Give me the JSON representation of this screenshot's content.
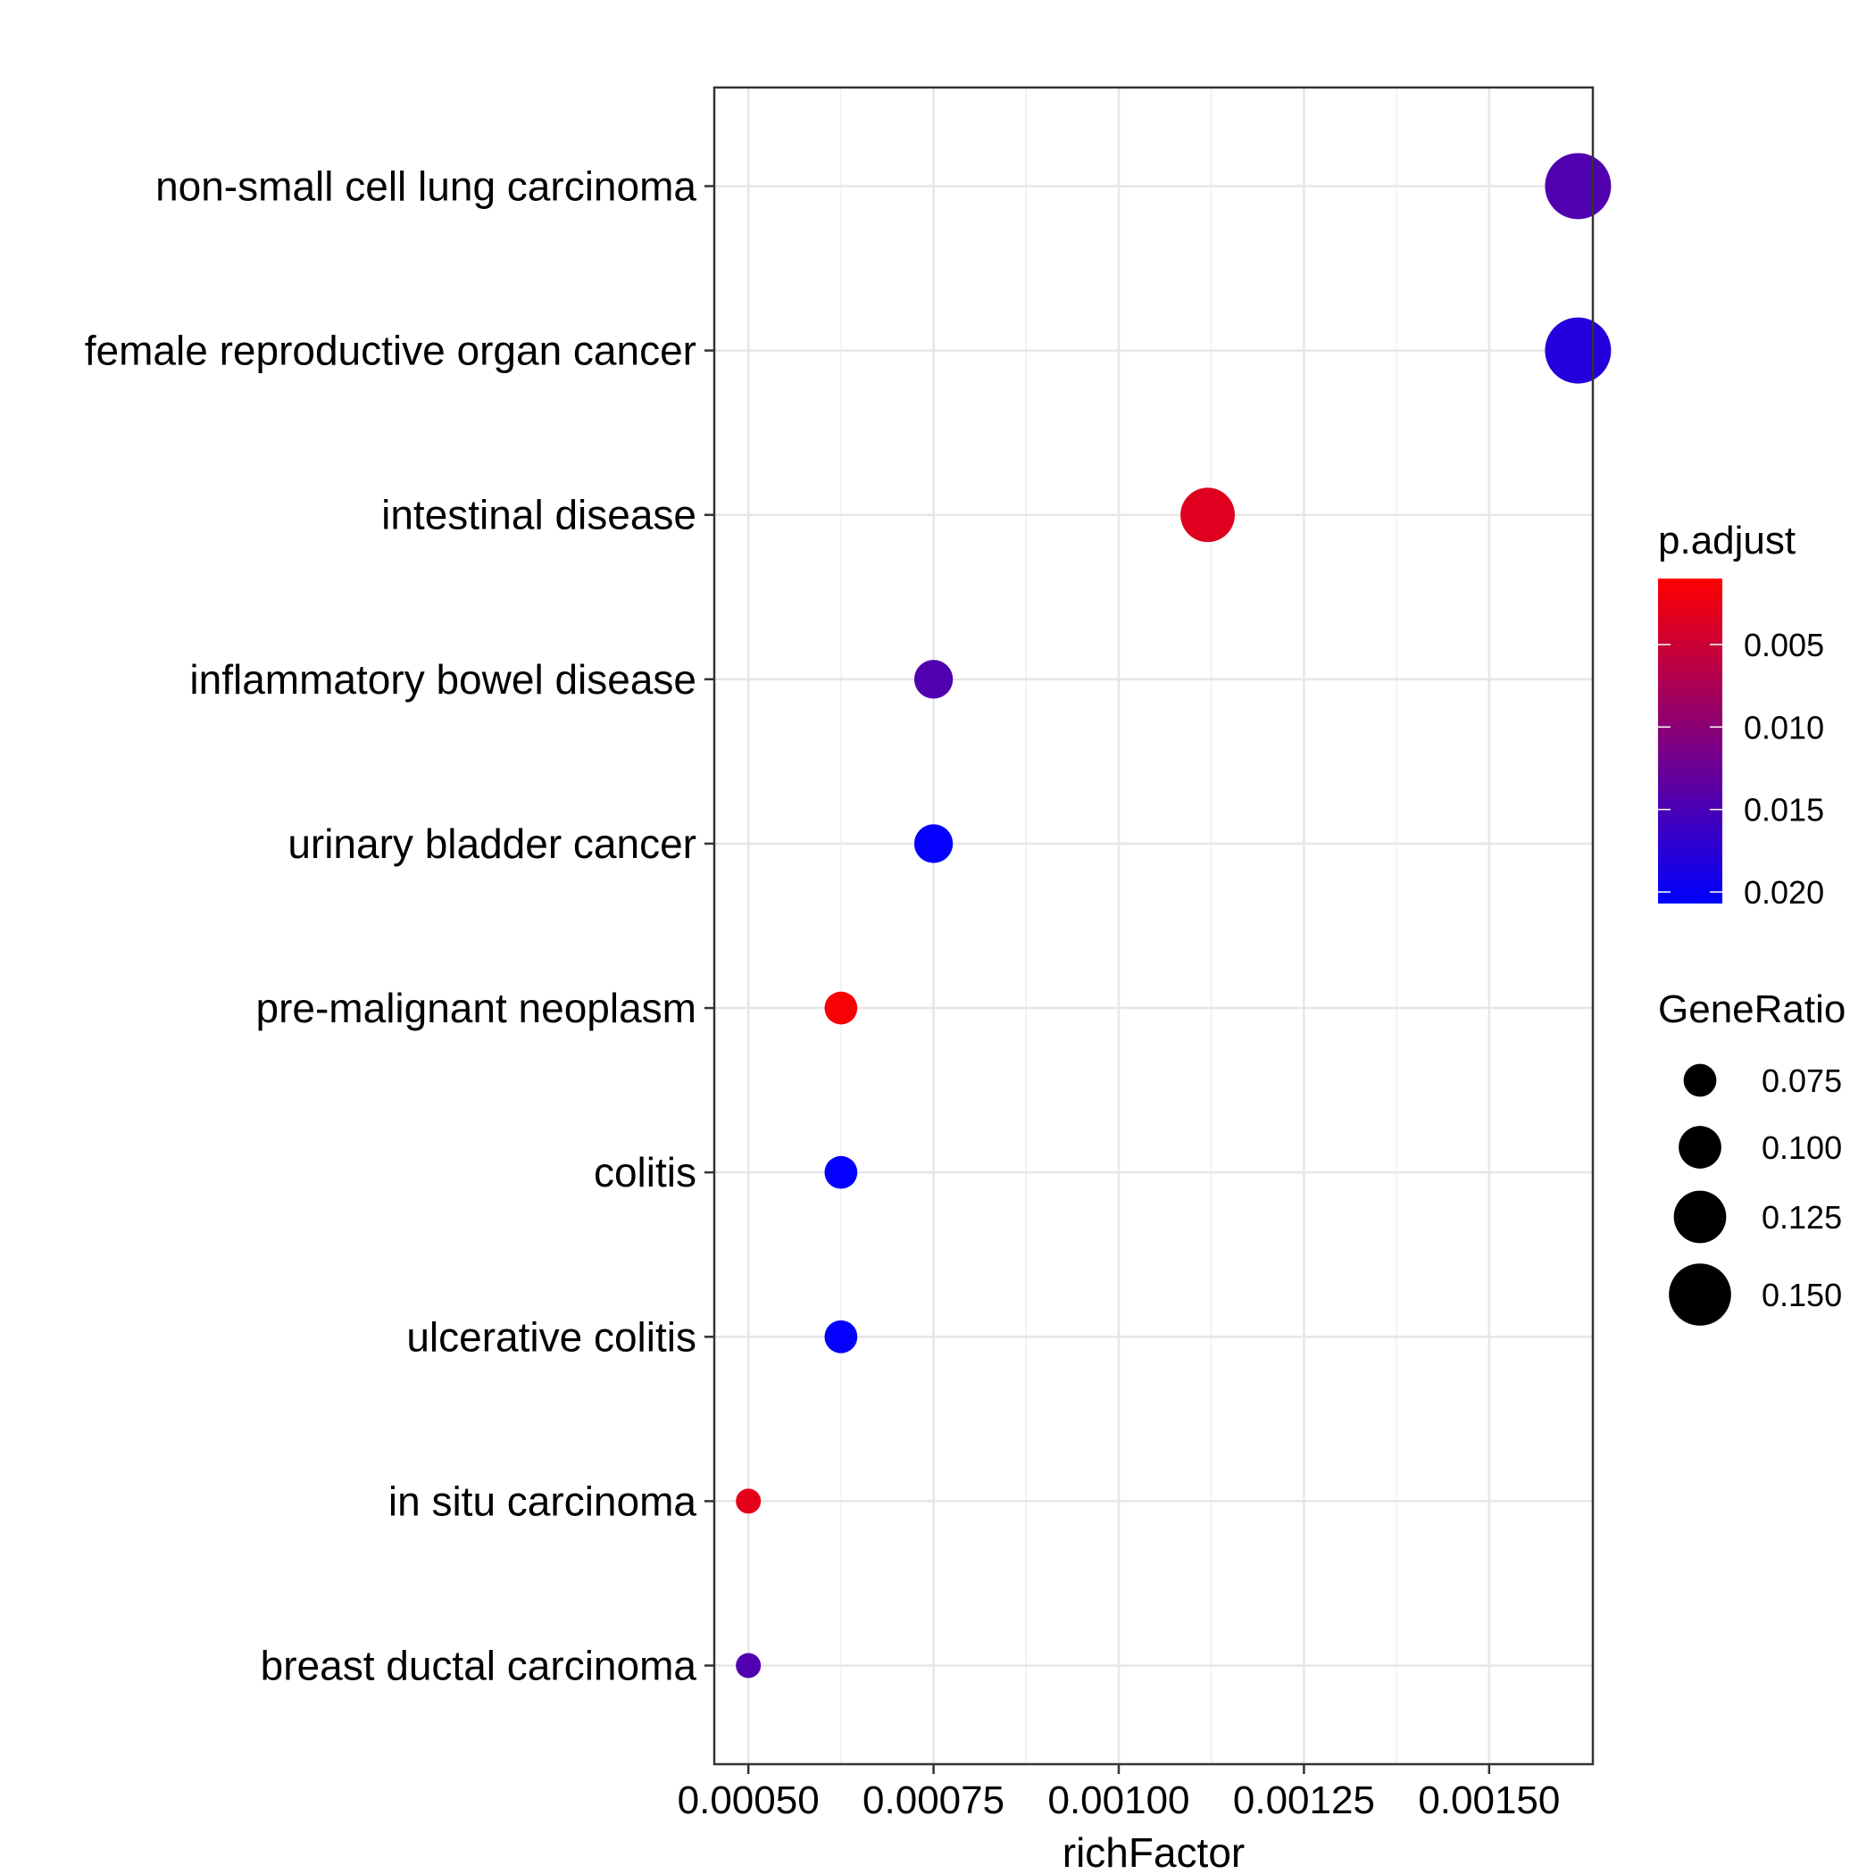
{
  "chart_data": {
    "type": "scatter",
    "xlabel": "richFactor",
    "ylabel": "",
    "xlim": [
      0.000454,
      0.00164
    ],
    "x_ticks": [
      {
        "value": 0.0005,
        "label": "0.00050"
      },
      {
        "value": 0.00075,
        "label": "0.00075"
      },
      {
        "value": 0.001,
        "label": "0.00100"
      },
      {
        "value": 0.00125,
        "label": "0.00125"
      },
      {
        "value": 0.0015,
        "label": "0.00150"
      }
    ],
    "grid": true,
    "categories": [
      "non-small cell lung carcinoma",
      "female reproductive organ cancer",
      "intestinal disease",
      "inflammatory bowel disease",
      "urinary bladder cancer",
      "pre-malignant neoplasm",
      "colitis",
      "ulcerative colitis",
      "in situ carcinoma",
      "breast ductal carcinoma"
    ],
    "points": [
      {
        "category": "non-small cell lung carcinoma",
        "richFactor": 0.00162,
        "p_adjust": 0.0145,
        "GeneRatio": 0.16
      },
      {
        "category": "female reproductive organ cancer",
        "richFactor": 0.00162,
        "p_adjust": 0.018,
        "GeneRatio": 0.16
      },
      {
        "category": "intestinal disease",
        "richFactor": 0.00112,
        "p_adjust": 0.0035,
        "GeneRatio": 0.13
      },
      {
        "category": "inflammatory bowel disease",
        "richFactor": 0.00075,
        "p_adjust": 0.0145,
        "GeneRatio": 0.09
      },
      {
        "category": "urinary bladder cancer",
        "richFactor": 0.00075,
        "p_adjust": 0.0205,
        "GeneRatio": 0.09
      },
      {
        "category": "pre-malignant neoplasm",
        "richFactor": 0.000625,
        "p_adjust": 0.0015,
        "GeneRatio": 0.075
      },
      {
        "category": "colitis",
        "richFactor": 0.000625,
        "p_adjust": 0.0205,
        "GeneRatio": 0.075
      },
      {
        "category": "ulcerative colitis",
        "richFactor": 0.000625,
        "p_adjust": 0.0205,
        "GeneRatio": 0.075
      },
      {
        "category": "in situ carcinoma",
        "richFactor": 0.0005,
        "p_adjust": 0.003,
        "GeneRatio": 0.055
      },
      {
        "category": "breast ductal carcinoma",
        "richFactor": 0.0005,
        "p_adjust": 0.0145,
        "GeneRatio": 0.055
      }
    ],
    "color_legend": {
      "title": "p.adjust",
      "low_color": "#ff0000",
      "high_color": "#0000ff",
      "range": [
        0.001,
        0.0207
      ],
      "ticks": [
        {
          "value": 0.005,
          "label": "0.005"
        },
        {
          "value": 0.01,
          "label": "0.010"
        },
        {
          "value": 0.015,
          "label": "0.015"
        },
        {
          "value": 0.02,
          "label": "0.020"
        }
      ]
    },
    "size_legend": {
      "title": "GeneRatio",
      "range": [
        0.055,
        0.16
      ],
      "entries": [
        {
          "value": 0.075,
          "label": "0.075"
        },
        {
          "value": 0.1,
          "label": "0.100"
        },
        {
          "value": 0.125,
          "label": "0.125"
        },
        {
          "value": 0.15,
          "label": "0.150"
        }
      ]
    }
  }
}
